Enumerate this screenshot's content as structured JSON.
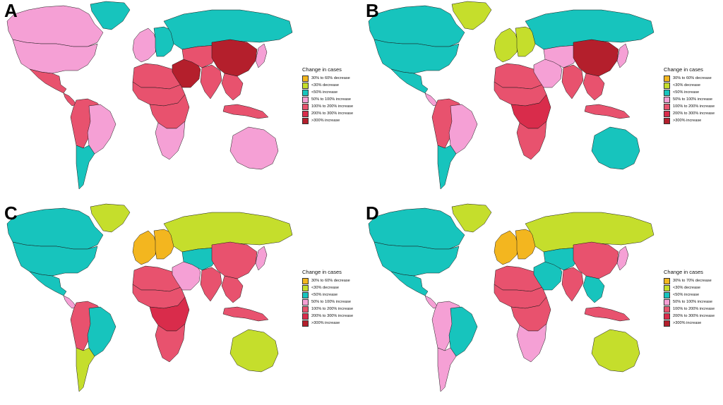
{
  "colors": {
    "c1": "#f3b61f",
    "c2": "#c5de2c",
    "c3": "#17c4bd",
    "c4": "#f5a0d5",
    "c5": "#e8526e",
    "c6": "#d92c4b",
    "c7": "#b41f2c",
    "ocean": "#ffffff",
    "border": "#1a1a1a"
  },
  "panels": [
    {
      "letter": "A",
      "legend": {
        "title": "Change in  cases",
        "items": [
          {
            "label": "30% to 60% decrease",
            "color": "c1"
          },
          {
            "label": "<30% decrease",
            "color": "c2"
          },
          {
            "label": "<50% increase",
            "color": "c3"
          },
          {
            "label": "50% to 100% increase",
            "color": "c4"
          },
          {
            "label": "100% to 200% increase",
            "color": "c5"
          },
          {
            "label": "200% to 300% increase",
            "color": "c6"
          },
          {
            "label": ">300% increase",
            "color": "c7"
          }
        ]
      },
      "regions": {
        "greenland": "c3",
        "canada": "c4",
        "usa": "c4",
        "mexico": "c5",
        "central_america": "c5",
        "south_america": "c5",
        "brazil": "c4",
        "southern_cone": "c3",
        "europe_west": "c4",
        "europe_east": "c3",
        "russia": "c3",
        "north_africa": "c5",
        "sahel": "c5",
        "central_africa": "c5",
        "southern_africa": "c4",
        "middle_east": "c7",
        "central_asia": "c5",
        "india": "c5",
        "china": "c7",
        "se_asia": "c5",
        "indonesia": "c5",
        "japan": "c4",
        "australia": "c4"
      }
    },
    {
      "letter": "B",
      "legend": {
        "title": "Change in  cases",
        "items": [
          {
            "label": "30% to 60% decrease",
            "color": "c1"
          },
          {
            "label": "<30% decrease",
            "color": "c2"
          },
          {
            "label": "<50% increase",
            "color": "c3"
          },
          {
            "label": "50% to 100% increase",
            "color": "c4"
          },
          {
            "label": "100% to 200% increase",
            "color": "c5"
          },
          {
            "label": "200% to 300% increase",
            "color": "c6"
          },
          {
            "label": ">300% increase",
            "color": "c7"
          }
        ]
      },
      "regions": {
        "greenland": "c2",
        "canada": "c3",
        "usa": "c3",
        "mexico": "c3",
        "central_america": "c4",
        "south_america": "c5",
        "brazil": "c4",
        "southern_cone": "c3",
        "europe_west": "c2",
        "europe_east": "c2",
        "russia": "c3",
        "north_africa": "c5",
        "sahel": "c5",
        "central_africa": "c6",
        "southern_africa": "c5",
        "middle_east": "c4",
        "central_asia": "c4",
        "india": "c5",
        "china": "c7",
        "se_asia": "c5",
        "indonesia": "c5",
        "japan": "c4",
        "australia": "c3"
      }
    },
    {
      "letter": "C",
      "legend": {
        "title": "Change in  cases",
        "items": [
          {
            "label": "30% to 60% decrease",
            "color": "c1"
          },
          {
            "label": "<30% decrease",
            "color": "c2"
          },
          {
            "label": "<50% increase",
            "color": "c3"
          },
          {
            "label": "50% to 100% increase",
            "color": "c4"
          },
          {
            "label": "100% to 200% increase",
            "color": "c5"
          },
          {
            "label": "200% to 300% increase",
            "color": "c6"
          },
          {
            "label": ">300% increase",
            "color": "c7"
          }
        ]
      },
      "regions": {
        "greenland": "c2",
        "canada": "c3",
        "usa": "c3",
        "mexico": "c3",
        "central_america": "c4",
        "south_america": "c5",
        "brazil": "c3",
        "southern_cone": "c2",
        "europe_west": "c1",
        "europe_east": "c1",
        "russia": "c2",
        "north_africa": "c5",
        "sahel": "c5",
        "central_africa": "c6",
        "southern_africa": "c5",
        "middle_east": "c4",
        "central_asia": "c3",
        "india": "c5",
        "china": "c5",
        "se_asia": "c5",
        "indonesia": "c5",
        "japan": "c4",
        "australia": "c2"
      }
    },
    {
      "letter": "D",
      "legend": {
        "title": "Change in  cases",
        "items": [
          {
            "label": "30% to 70% decrease",
            "color": "c1"
          },
          {
            "label": "<30% decrease",
            "color": "c2"
          },
          {
            "label": "<50% increase",
            "color": "c3"
          },
          {
            "label": "50% to 100% increase",
            "color": "c4"
          },
          {
            "label": "100% to 200% increase",
            "color": "c5"
          },
          {
            "label": "200% to 300% increase",
            "color": "c6"
          },
          {
            "label": ">300% increase",
            "color": "c7"
          }
        ]
      },
      "regions": {
        "greenland": "c2",
        "canada": "c3",
        "usa": "c3",
        "mexico": "c3",
        "central_america": "c4",
        "south_america": "c4",
        "brazil": "c3",
        "southern_cone": "c4",
        "europe_west": "c1",
        "europe_east": "c1",
        "russia": "c2",
        "north_africa": "c5",
        "sahel": "c5",
        "central_africa": "c5",
        "southern_africa": "c4",
        "middle_east": "c3",
        "central_asia": "c3",
        "india": "c5",
        "china": "c5",
        "se_asia": "c3",
        "indonesia": "c5",
        "japan": "c4",
        "australia": "c2"
      }
    }
  ]
}
